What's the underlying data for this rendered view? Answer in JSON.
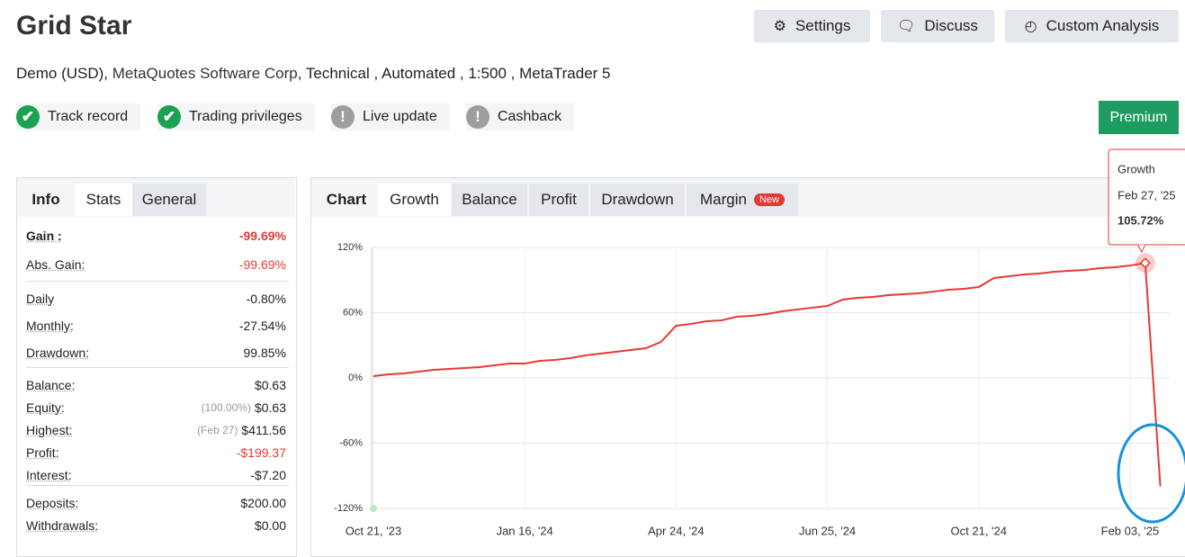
{
  "header": {
    "title": "Grid Star",
    "buttons": [
      "Settings",
      "Discuss",
      "Custom Analysis"
    ],
    "details": {
      "account": "Demo (USD),",
      "broker": "MetaQuotes Software Corp",
      "rest": ", Technical , Automated , 1:500 , MetaTrader 5"
    }
  },
  "badges": [
    {
      "label": "Track record",
      "icon": "check"
    },
    {
      "label": "Trading privileges",
      "icon": "check"
    },
    {
      "label": "Live update",
      "icon": "exclamation"
    },
    {
      "label": "Cashback",
      "icon": "exclamation"
    }
  ],
  "premium": "Premium",
  "stats_tabs": [
    {
      "label": "Info"
    },
    {
      "label": "Stats",
      "active": true
    },
    {
      "label": "General"
    }
  ],
  "stats": [
    [
      {
        "label": "Gain :",
        "value": "-99.69%",
        "color": "#e53935",
        "bold": true
      },
      {
        "label": "Abs. Gain:",
        "value": "-99.69%",
        "color": "#e53935"
      }
    ],
    [
      {
        "label": "Daily",
        "value": "-0.80%"
      },
      {
        "label": "Monthly:",
        "value": "-27.54%"
      },
      {
        "label": "Drawdown:",
        "value": "99.85%"
      }
    ],
    [
      {
        "label": "Balance:",
        "value": "$0.63"
      },
      {
        "label": "Equity:",
        "note": "(100.00%)",
        "value": "$0.63"
      },
      {
        "label": "Highest:",
        "note": "(Feb 27)",
        "value": "$411.56"
      },
      {
        "label": "Profit:",
        "value": "-$199.37",
        "color": "#e53935"
      },
      {
        "label": "Interest:",
        "value": "-$7.20"
      }
    ],
    [
      {
        "label": "Deposits:",
        "value": "$200.00"
      },
      {
        "label": "Withdrawals:",
        "value": "$0.00"
      }
    ]
  ],
  "chart_tabs": [
    {
      "label": "Chart"
    },
    {
      "label": "Growth",
      "active": true
    },
    {
      "label": "Balance"
    },
    {
      "label": "Profit"
    },
    {
      "label": "Drawdown"
    },
    {
      "label": "Margin",
      "badge": "New"
    }
  ],
  "tooltip": {
    "date": "Feb 27, '25",
    "value": "105.72%"
  },
  "chart_data": {
    "type": "line",
    "categories": [
      "Oct 21, '23",
      null,
      null,
      null,
      null,
      null,
      null,
      null,
      null,
      null,
      "Jan 16, '24",
      null,
      null,
      null,
      null,
      null,
      null,
      null,
      null,
      null,
      "Apr 24, '24",
      null,
      null,
      null,
      null,
      null,
      null,
      null,
      null,
      null,
      "Jun 25, '24",
      null,
      null,
      null,
      null,
      null,
      null,
      null,
      null,
      null,
      "Oct 21, '24",
      null,
      null,
      null,
      null,
      null,
      null,
      null,
      null,
      null,
      "Feb 03, '25",
      null,
      null
    ],
    "series": [
      {
        "name": "Growth",
        "color": "#e53935",
        "values": [
          1.7,
          3.3,
          4.1,
          5.8,
          7.4,
          8.3,
          9.1,
          9.9,
          11.6,
          13.2,
          13.2,
          15.7,
          16.6,
          18.2,
          20.7,
          22.3,
          24,
          25.7,
          27.3,
          33.1,
          48,
          49.7,
          52.1,
          53,
          56.3,
          57.1,
          58.8,
          61.2,
          62.9,
          64.6,
          66.2,
          72,
          73.7,
          74.5,
          76.1,
          77,
          77.8,
          79.4,
          81.1,
          81.9,
          83.6,
          91.9,
          93.5,
          95.2,
          96,
          97.7,
          98.5,
          99.3,
          101,
          101.8,
          103.4,
          105.72,
          -99.69
        ]
      }
    ],
    "ylim": [
      -120,
      120
    ],
    "yticks": [
      {
        "value": -120,
        "label": "-120%"
      },
      {
        "value": -60,
        "label": "-60%"
      },
      {
        "value": 0,
        "label": "0%"
      },
      {
        "value": 60,
        "label": "60%"
      },
      {
        "value": 120,
        "label": "120%"
      }
    ],
    "grid": true
  }
}
